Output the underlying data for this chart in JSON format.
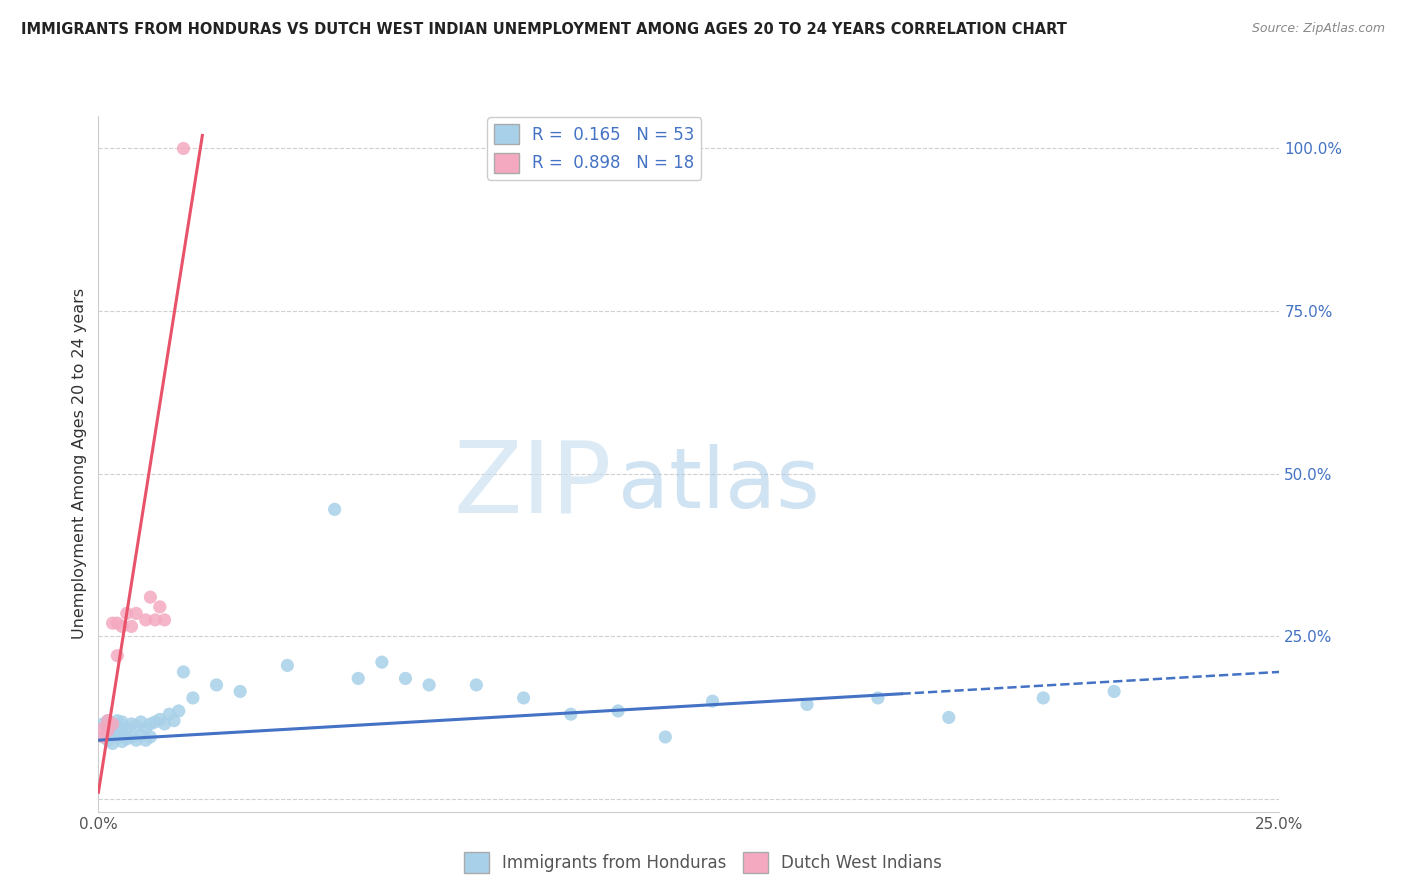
{
  "title": "IMMIGRANTS FROM HONDURAS VS DUTCH WEST INDIAN UNEMPLOYMENT AMONG AGES 20 TO 24 YEARS CORRELATION CHART",
  "source": "Source: ZipAtlas.com",
  "ylabel": "Unemployment Among Ages 20 to 24 years",
  "xlim": [
    0.0,
    0.25
  ],
  "ylim": [
    -0.02,
    1.05
  ],
  "xticks": [
    0.0,
    0.05,
    0.1,
    0.15,
    0.2,
    0.25
  ],
  "yticks": [
    0.0,
    0.25,
    0.5,
    0.75,
    1.0
  ],
  "xticklabels": [
    "0.0%",
    "",
    "",
    "",
    "",
    "25.0%"
  ],
  "yticklabels": [
    "",
    "25.0%",
    "50.0%",
    "75.0%",
    "100.0%"
  ],
  "legend_labels": [
    "Immigrants from Honduras",
    "Dutch West Indians"
  ],
  "series1_color": "#a8d0e8",
  "series2_color": "#f4a9c0",
  "line1_color": "#4472c4",
  "line2_color": "#e8536a",
  "R1": 0.165,
  "N1": 53,
  "R2": 0.898,
  "N2": 18,
  "watermark_zip": "ZIP",
  "watermark_atlas": "atlas",
  "background_color": "#ffffff",
  "grid_color": "#d0d0d0",
  "series1_x": [
    0.001,
    0.001,
    0.002,
    0.002,
    0.002,
    0.003,
    0.003,
    0.003,
    0.004,
    0.004,
    0.004,
    0.005,
    0.005,
    0.005,
    0.006,
    0.006,
    0.007,
    0.007,
    0.008,
    0.008,
    0.009,
    0.009,
    0.01,
    0.01,
    0.011,
    0.011,
    0.012,
    0.013,
    0.014,
    0.015,
    0.016,
    0.017,
    0.018,
    0.02,
    0.025,
    0.03,
    0.04,
    0.05,
    0.055,
    0.06,
    0.065,
    0.07,
    0.08,
    0.09,
    0.1,
    0.11,
    0.12,
    0.13,
    0.15,
    0.165,
    0.18,
    0.2,
    0.215
  ],
  "series1_y": [
    0.095,
    0.115,
    0.09,
    0.105,
    0.12,
    0.085,
    0.1,
    0.115,
    0.095,
    0.11,
    0.12,
    0.088,
    0.105,
    0.118,
    0.092,
    0.108,
    0.095,
    0.115,
    0.09,
    0.112,
    0.098,
    0.118,
    0.09,
    0.108,
    0.095,
    0.115,
    0.118,
    0.122,
    0.115,
    0.13,
    0.12,
    0.135,
    0.195,
    0.155,
    0.175,
    0.165,
    0.205,
    0.445,
    0.185,
    0.21,
    0.185,
    0.175,
    0.175,
    0.155,
    0.13,
    0.135,
    0.095,
    0.15,
    0.145,
    0.155,
    0.125,
    0.155,
    0.165
  ],
  "series2_x": [
    0.001,
    0.001,
    0.002,
    0.002,
    0.003,
    0.003,
    0.004,
    0.004,
    0.005,
    0.006,
    0.007,
    0.008,
    0.01,
    0.011,
    0.012,
    0.013,
    0.014,
    0.018
  ],
  "series2_y": [
    0.095,
    0.108,
    0.105,
    0.12,
    0.115,
    0.27,
    0.22,
    0.27,
    0.265,
    0.285,
    0.265,
    0.285,
    0.275,
    0.31,
    0.275,
    0.295,
    0.275,
    1.0
  ],
  "line1_x0": 0.0,
  "line1_x1": 0.25,
  "line1_y0": 0.09,
  "line1_y1": 0.195,
  "line1_solid_x1": 0.17,
  "line2_x0": 0.0,
  "line2_x1": 0.022,
  "line2_y0": 0.01,
  "line2_y1": 1.02
}
